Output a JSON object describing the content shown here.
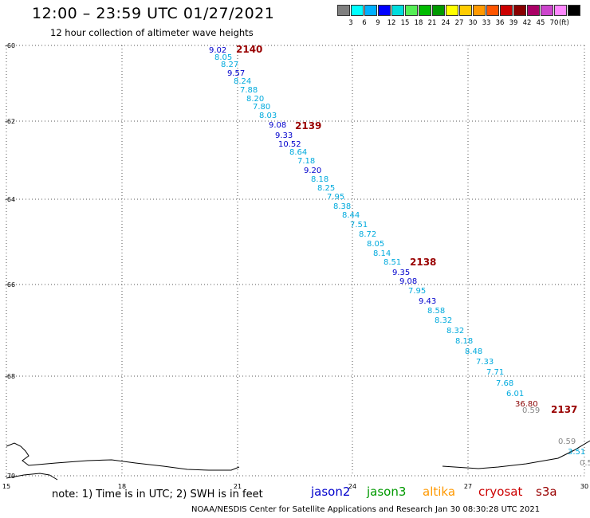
{
  "title": "12:00 – 23:59 UTC 01/27/2021",
  "subtitle": "12 hour collection of altimeter wave heights",
  "legend": {
    "colors": [
      "#808080",
      "#00ffff",
      "#00b0ff",
      "#0000ff",
      "#00dddd",
      "#55ee55",
      "#00bb00",
      "#009900",
      "#ffff00",
      "#ffcc00",
      "#ff9900",
      "#ff5500",
      "#cc0000",
      "#880000",
      "#aa0066",
      "#cc44cc",
      "#ff88ff",
      "#000000"
    ],
    "labels": [
      "3",
      "6",
      "9",
      "12",
      "15",
      "18",
      "21",
      "24",
      "27",
      "30",
      "33",
      "36",
      "39",
      "42",
      "45",
      "70"
    ],
    "unit": "(ft)"
  },
  "axes": {
    "lat_labels": [
      "-60",
      "-62",
      "-64",
      "-66",
      "-68",
      "-70"
    ],
    "lon_labels": [
      "15",
      "18",
      "21",
      "24",
      "27",
      "30"
    ]
  },
  "orbits": [
    {
      "label": "2140",
      "color": "#990000"
    },
    {
      "label": "2139",
      "color": "#990000"
    },
    {
      "label": "2138",
      "color": "#990000"
    },
    {
      "label": "2137",
      "color": "#990000"
    }
  ],
  "measurements": [
    {
      "v": "9.02",
      "c": "#0000cc"
    },
    {
      "v": "8.05",
      "c": "#00aadd"
    },
    {
      "v": "8.27",
      "c": "#00aadd"
    },
    {
      "v": "9.57",
      "c": "#0000cc"
    },
    {
      "v": "8.24",
      "c": "#00aadd"
    },
    {
      "v": "7.88",
      "c": "#00aadd"
    },
    {
      "v": "8.20",
      "c": "#00aadd"
    },
    {
      "v": "7.80",
      "c": "#00aadd"
    },
    {
      "v": "8.03",
      "c": "#00aadd"
    },
    {
      "v": "9.08",
      "c": "#0000cc"
    },
    {
      "v": "9.33",
      "c": "#0000cc"
    },
    {
      "v": "10.52",
      "c": "#0000cc"
    },
    {
      "v": "8.64",
      "c": "#00aadd"
    },
    {
      "v": "7.18",
      "c": "#00aadd"
    },
    {
      "v": "9.20",
      "c": "#0000cc"
    },
    {
      "v": "8.18",
      "c": "#00aadd"
    },
    {
      "v": "8.25",
      "c": "#00aadd"
    },
    {
      "v": "7.95",
      "c": "#00aadd"
    },
    {
      "v": "8.38",
      "c": "#00aadd"
    },
    {
      "v": "8.44",
      "c": "#00aadd"
    },
    {
      "v": "7.51",
      "c": "#00aadd"
    },
    {
      "v": "8.72",
      "c": "#00aadd"
    },
    {
      "v": "8.05",
      "c": "#00aadd"
    },
    {
      "v": "8.14",
      "c": "#00aadd"
    },
    {
      "v": "8.51",
      "c": "#00aadd"
    },
    {
      "v": "9.35",
      "c": "#0000cc"
    },
    {
      "v": "9.08",
      "c": "#0000cc"
    },
    {
      "v": "7.95",
      "c": "#00aadd"
    },
    {
      "v": "9.43",
      "c": "#0000cc"
    },
    {
      "v": "8.58",
      "c": "#00aadd"
    },
    {
      "v": "8.32",
      "c": "#00aadd"
    },
    {
      "v": "8.32",
      "c": "#00aadd"
    },
    {
      "v": "8.18",
      "c": "#00aadd"
    },
    {
      "v": "8.48",
      "c": "#00aadd"
    },
    {
      "v": "7.33",
      "c": "#00aadd"
    },
    {
      "v": "7.71",
      "c": "#00aadd"
    },
    {
      "v": "7.68",
      "c": "#00aadd"
    },
    {
      "v": "6.01",
      "c": "#00aadd"
    },
    {
      "v": "36.80",
      "c": "#880000"
    },
    {
      "v": "0.59",
      "c": "#888888"
    },
    {
      "v": "0.59",
      "c": "#888888"
    },
    {
      "v": "3.51",
      "c": "#00aadd"
    },
    {
      "v": "0.5",
      "c": "#888888"
    }
  ],
  "note": "note:  1) Time is in UTC;  2) SWH is in feet",
  "satellites": [
    {
      "name": "jason2",
      "color": "#0000cc"
    },
    {
      "name": "jason3",
      "color": "#009900"
    },
    {
      "name": "altika",
      "color": "#ff9900"
    },
    {
      "name": "cryosat",
      "color": "#cc0000"
    },
    {
      "name": "s3a",
      "color": "#990000"
    }
  ],
  "footer": "NOAA/NESDIS Center for Satellite Applications and Research     Jan 30 08:30:28 UTC 2021"
}
